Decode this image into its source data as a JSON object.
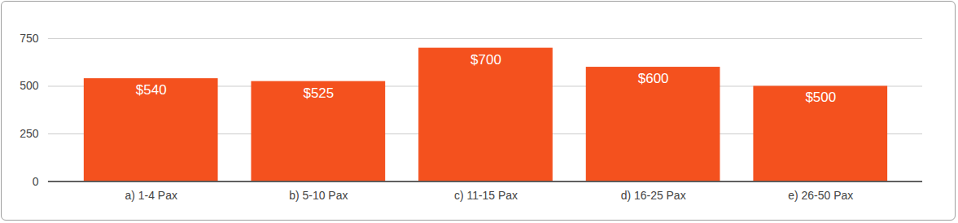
{
  "chart_data": {
    "type": "bar",
    "categories": [
      "a) 1-4 Pax",
      "b) 5-10 Pax",
      "c) 11-15 Pax",
      "d) 16-25 Pax",
      "e) 26-50 Pax"
    ],
    "values": [
      540,
      525,
      700,
      600,
      500
    ],
    "value_labels": [
      "$540",
      "$525",
      "$700",
      "$600",
      "$500"
    ],
    "color": "#f4511e",
    "ylim": [
      0,
      750
    ],
    "yticks": [
      0,
      250,
      500,
      750
    ],
    "grid": true,
    "data_labels": true
  }
}
